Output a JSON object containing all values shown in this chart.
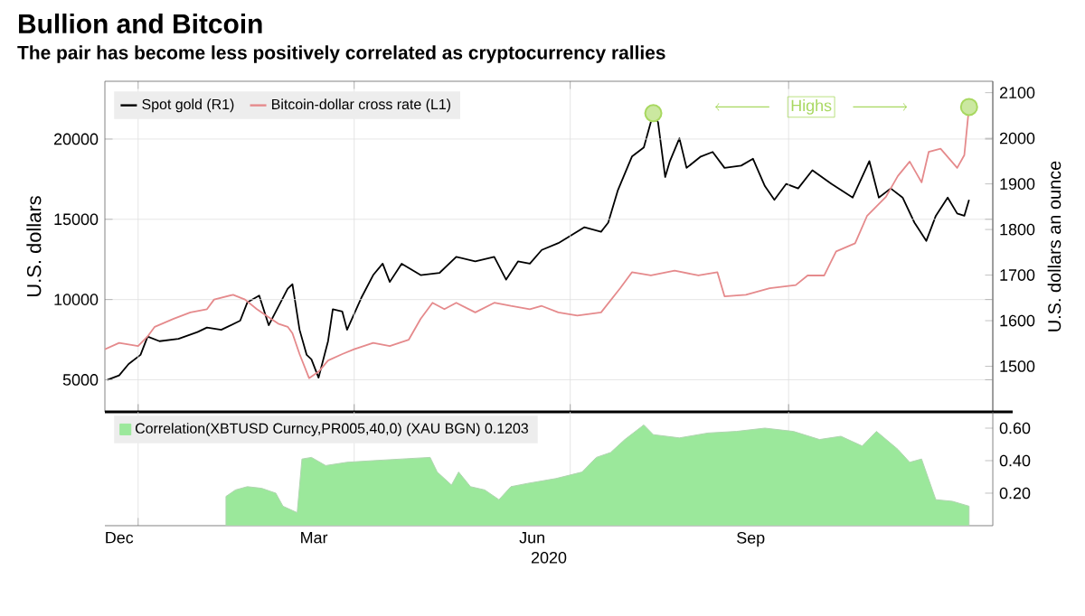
{
  "chart_data": [
    {
      "type": "line",
      "title": "Bullion and Bitcoin",
      "subtitle": "The pair has become less positively correlated as cryptocurrency rallies",
      "ylabel": "U.S. dollars",
      "y2label": "U.S. dollars an ounce",
      "legend": "top left",
      "grid": true,
      "tick_labels": "y",
      "xlim": [
        "2019-12-18",
        "2020-12-26"
      ],
      "xticks": [
        {
          "value": "2020-01-01",
          "label": null
        },
        {
          "value": "2020-04-01",
          "label": null
        },
        {
          "value": "2020-07-01",
          "label": null
        },
        {
          "value": "2020-10-01",
          "label": null
        }
      ],
      "ylim": [
        3000,
        23600
      ],
      "yticks": [
        5000,
        10000,
        15000,
        20000
      ],
      "y2lim": [
        1400,
        2125
      ],
      "y2ticks": [
        1500,
        1600,
        1700,
        1800,
        1900,
        2000,
        2100
      ],
      "annotations": [
        "Highs"
      ],
      "series": [
        {
          "name": "Spot gold (R1)",
          "color": "#000000",
          "axis": "y2",
          "x": [
            "2019-12-19",
            "2019-12-24",
            "2019-12-28",
            "2020-01-02",
            "2020-01-05",
            "2020-01-10",
            "2020-01-18",
            "2020-01-26",
            "2020-01-30",
            "2020-02-05",
            "2020-02-13",
            "2020-02-16",
            "2020-02-21",
            "2020-02-25",
            "2020-02-29",
            "2020-03-04",
            "2020-03-06",
            "2020-03-09",
            "2020-03-12",
            "2020-03-14",
            "2020-03-17",
            "2020-03-21",
            "2020-03-23",
            "2020-03-27",
            "2020-03-29",
            "2020-04-04",
            "2020-04-09",
            "2020-04-13",
            "2020-04-16",
            "2020-04-21",
            "2020-04-29",
            "2020-05-07",
            "2020-05-14",
            "2020-05-22",
            "2020-05-30",
            "2020-06-04",
            "2020-06-09",
            "2020-06-14",
            "2020-06-19",
            "2020-06-26",
            "2020-07-07",
            "2020-07-14",
            "2020-07-17",
            "2020-07-21",
            "2020-07-27",
            "2020-08-01",
            "2020-08-05",
            "2020-08-07",
            "2020-08-10",
            "2020-08-12",
            "2020-08-16",
            "2020-08-19",
            "2020-08-25",
            "2020-08-30",
            "2020-09-04",
            "2020-09-11",
            "2020-09-16",
            "2020-09-21",
            "2020-09-25",
            "2020-09-30",
            "2020-10-05",
            "2020-10-11",
            "2020-10-19",
            "2020-10-28",
            "2020-11-04",
            "2020-11-08",
            "2020-11-13",
            "2020-11-18",
            "2020-11-23",
            "2020-11-28",
            "2020-12-02",
            "2020-12-07",
            "2020-12-11",
            "2020-12-14",
            "2020-12-16"
          ],
          "values": [
            1470,
            1480,
            1505,
            1525,
            1565,
            1555,
            1560,
            1575,
            1585,
            1580,
            1600,
            1640,
            1655,
            1590,
            1630,
            1670,
            1680,
            1580,
            1525,
            1515,
            1475,
            1555,
            1625,
            1620,
            1580,
            1650,
            1700,
            1725,
            1685,
            1725,
            1700,
            1705,
            1740,
            1730,
            1740,
            1690,
            1730,
            1725,
            1755,
            1770,
            1805,
            1795,
            1815,
            1885,
            1960,
            1980,
            2055,
            2035,
            1915,
            1950,
            2000,
            1935,
            1960,
            1970,
            1935,
            1940,
            1955,
            1895,
            1865,
            1900,
            1890,
            1930,
            1900,
            1870,
            1950,
            1870,
            1890,
            1870,
            1815,
            1775,
            1830,
            1870,
            1835,
            1830,
            1865
          ]
        },
        {
          "name": "Bitcoin-dollar cross rate (L1)",
          "color": "#e58a8c",
          "x": [
            "2019-12-18",
            "2019-12-24",
            "2020-01-01",
            "2020-01-05",
            "2020-01-08",
            "2020-01-16",
            "2020-01-23",
            "2020-01-30",
            "2020-02-02",
            "2020-02-10",
            "2020-02-15",
            "2020-02-20",
            "2020-02-24",
            "2020-02-29",
            "2020-03-04",
            "2020-03-06",
            "2020-03-09",
            "2020-03-13",
            "2020-03-17",
            "2020-03-21",
            "2020-03-27",
            "2020-04-01",
            "2020-04-09",
            "2020-04-16",
            "2020-04-24",
            "2020-04-29",
            "2020-05-04",
            "2020-05-09",
            "2020-05-14",
            "2020-05-22",
            "2020-05-30",
            "2020-06-06",
            "2020-06-14",
            "2020-06-19",
            "2020-06-26",
            "2020-07-04",
            "2020-07-14",
            "2020-07-22",
            "2020-07-27",
            "2020-08-04",
            "2020-08-14",
            "2020-08-24",
            "2020-09-01",
            "2020-09-04",
            "2020-09-13",
            "2020-09-23",
            "2020-10-04",
            "2020-10-09",
            "2020-10-16",
            "2020-10-21",
            "2020-10-29",
            "2020-11-03",
            "2020-11-11",
            "2020-11-16",
            "2020-11-21",
            "2020-11-26",
            "2020-11-29",
            "2020-12-04",
            "2020-12-11",
            "2020-12-14",
            "2020-12-16"
          ],
          "values": [
            6900,
            7300,
            7100,
            7700,
            8300,
            8800,
            9200,
            9400,
            10000,
            10300,
            10000,
            9400,
            9000,
            8500,
            8300,
            7900,
            6600,
            5100,
            5500,
            6200,
            6600,
            6900,
            7300,
            7100,
            7500,
            8800,
            9800,
            9400,
            9800,
            9200,
            9800,
            9600,
            9400,
            9600,
            9200,
            9000,
            9200,
            10700,
            11700,
            11500,
            11800,
            11500,
            11700,
            10200,
            10300,
            10700,
            10900,
            11500,
            11500,
            13000,
            13500,
            15200,
            16400,
            17700,
            18600,
            17300,
            19200,
            19400,
            18200,
            19000,
            22000
          ]
        }
      ]
    },
    {
      "type": "area",
      "xlabel": "2020",
      "legend": "top left",
      "grid": "x",
      "xlim": [
        "2019-12-18",
        "2020-12-26"
      ],
      "xticks": [
        {
          "value": "2019-12-24",
          "label": "Dec"
        },
        {
          "value": "2020-01-01",
          "label": null
        },
        {
          "value": "2020-03-15",
          "label": "Mar"
        },
        {
          "value": "2020-04-01",
          "label": null
        },
        {
          "value": "2020-06-15",
          "label": "Jun"
        },
        {
          "value": "2020-07-01",
          "label": null
        },
        {
          "value": "2020-09-15",
          "label": "Sep"
        },
        {
          "value": "2020-10-01",
          "label": null
        }
      ],
      "ylim": [
        0,
        0.7
      ],
      "yticks": [
        {
          "value": 0.2,
          "label": "0.20"
        },
        {
          "value": 0.4,
          "label": "0.40"
        },
        {
          "value": 0.6,
          "label": "0.60"
        }
      ],
      "series": [
        {
          "name": "Correlation(XBTUSD Curncy,PR005,40,0) (XAU BGN) 0.1203",
          "color": "#9be89b",
          "x": [
            "2020-02-07",
            "2020-02-11",
            "2020-02-16",
            "2020-02-22",
            "2020-02-28",
            "2020-03-02",
            "2020-03-08",
            "2020-03-10",
            "2020-03-14",
            "2020-03-20",
            "2020-03-29",
            "2020-04-09",
            "2020-04-21",
            "2020-05-03",
            "2020-05-06",
            "2020-05-12",
            "2020-05-15",
            "2020-05-20",
            "2020-05-26",
            "2020-06-01",
            "2020-06-06",
            "2020-06-13",
            "2020-06-25",
            "2020-07-06",
            "2020-07-12",
            "2020-07-18",
            "2020-07-24",
            "2020-08-01",
            "2020-08-05",
            "2020-08-16",
            "2020-08-28",
            "2020-09-09",
            "2020-09-21",
            "2020-10-03",
            "2020-10-14",
            "2020-10-23",
            "2020-11-01",
            "2020-11-07",
            "2020-11-16",
            "2020-11-21",
            "2020-11-26",
            "2020-12-02",
            "2020-12-09",
            "2020-12-16"
          ],
          "values": [
            0.18,
            0.22,
            0.24,
            0.23,
            0.2,
            0.12,
            0.08,
            0.41,
            0.42,
            0.37,
            0.39,
            0.4,
            0.41,
            0.42,
            0.33,
            0.25,
            0.33,
            0.24,
            0.22,
            0.16,
            0.24,
            0.26,
            0.29,
            0.33,
            0.42,
            0.45,
            0.53,
            0.62,
            0.56,
            0.54,
            0.57,
            0.58,
            0.6,
            0.58,
            0.53,
            0.55,
            0.49,
            0.58,
            0.47,
            0.39,
            0.41,
            0.16,
            0.15,
            0.12
          ]
        }
      ]
    }
  ]
}
